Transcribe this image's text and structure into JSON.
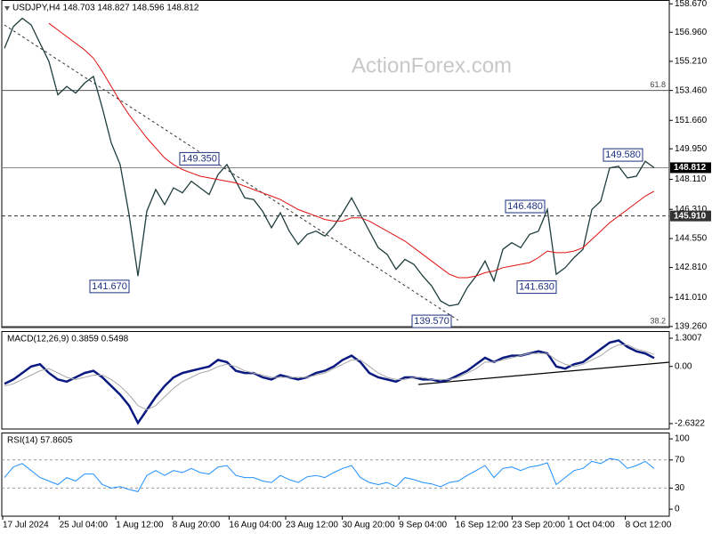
{
  "chart_data": [
    {
      "type": "line",
      "title": "USDJPY,H4  148.703 148.827 148.596 148.812",
      "watermark": "ActionForex.com",
      "ylim": [
        139.2,
        158.9
      ],
      "yticks": [
        {
          "value": 158.67,
          "label": "158.670"
        },
        {
          "value": 156.96,
          "label": "156.960"
        },
        {
          "value": 155.21,
          "label": "155.210"
        },
        {
          "value": 153.46,
          "label": "153.460"
        },
        {
          "value": 151.66,
          "label": "151.660"
        },
        {
          "value": 149.95,
          "label": "149.950"
        },
        {
          "value": 148.11,
          "label": "148.110"
        },
        {
          "value": 146.31,
          "label": "146.310"
        },
        {
          "value": 144.55,
          "label": "144.550"
        },
        {
          "value": 142.81,
          "label": "142.810"
        },
        {
          "value": 141.01,
          "label": "141.010"
        },
        {
          "value": 139.26,
          "label": "139.260"
        }
      ],
      "series": [
        {
          "name": "USDJPY",
          "color": "#1f3d3d",
          "values": [
            156.0,
            157.3,
            157.8,
            157.4,
            156.3,
            155.2,
            153.2,
            153.7,
            153.3,
            153.9,
            154.3,
            152.4,
            150.3,
            149.0,
            146.0,
            142.3,
            146.2,
            147.5,
            146.6,
            147.6,
            147.3,
            148.0,
            147.6,
            147.2,
            148.4,
            149.0,
            148.0,
            147.0,
            146.9,
            146.2,
            145.2,
            146.1,
            145.0,
            144.2,
            144.8,
            145.0,
            144.7,
            145.3,
            146.1,
            147.0,
            146.0,
            145.0,
            144.0,
            143.6,
            142.7,
            143.3,
            143.0,
            142.3,
            141.7,
            140.8,
            140.5,
            140.6,
            141.6,
            142.3,
            143.2,
            142.0,
            143.9,
            144.3,
            144.0,
            144.8,
            145.0,
            146.3,
            142.4,
            142.8,
            143.4,
            143.9,
            146.3,
            146.8,
            148.8,
            148.9,
            148.2,
            148.3,
            149.2,
            148.812
          ]
        },
        {
          "name": "MA",
          "color": "#e01010",
          "values": [
            null,
            null,
            null,
            null,
            null,
            157.5,
            157.1,
            156.7,
            156.3,
            155.9,
            155.4,
            154.6,
            153.7,
            152.8,
            152.0,
            151.3,
            150.6,
            150.0,
            149.4,
            149.0,
            148.7,
            148.5,
            148.3,
            148.2,
            148.1,
            148.0,
            147.9,
            147.7,
            147.5,
            147.3,
            147.1,
            146.9,
            146.6,
            146.3,
            146.1,
            145.9,
            145.7,
            145.6,
            145.6,
            145.8,
            145.8,
            145.6,
            145.3,
            145.0,
            144.7,
            144.4,
            144.0,
            143.6,
            143.2,
            142.8,
            142.4,
            142.2,
            142.2,
            142.3,
            142.5,
            142.6,
            142.8,
            142.9,
            143.0,
            143.1,
            143.4,
            143.8,
            143.7,
            143.7,
            143.8,
            144.0,
            144.5,
            145.0,
            145.5,
            145.9,
            146.3,
            146.7,
            147.1,
            147.4
          ]
        }
      ],
      "fib_levels": [
        {
          "ratio": 61.8,
          "price": 153.46
        },
        {
          "ratio": 38.2,
          "price": 139.26
        }
      ],
      "levels": [
        148.812,
        {
          "value": 145.91,
          "label": "145.910"
        }
      ],
      "annotations": [
        {
          "value": 149.35,
          "label": "149.350"
        },
        {
          "value": 141.67,
          "label": "141.670"
        },
        {
          "value": 139.57,
          "label": "139.570"
        },
        {
          "value": 146.48,
          "label": "146.480"
        },
        {
          "value": 141.63,
          "label": "141.630"
        },
        {
          "value": 149.58,
          "label": "149.580"
        }
      ]
    },
    {
      "type": "line",
      "title": "MACD(12,26,9) 0.3859 0.5498",
      "ylim": [
        -2.88,
        1.63
      ],
      "yticks": [
        1.3007,
        {
          "value": 0,
          "label": "0.00"
        },
        -2.6322
      ],
      "series": [
        {
          "name": "MACD",
          "color": "#0a1a80",
          "values": [
            -0.8,
            -0.6,
            -0.3,
            0.0,
            0.1,
            -0.3,
            -0.6,
            -0.7,
            -0.5,
            -0.3,
            -0.2,
            -0.5,
            -0.9,
            -1.3,
            -1.8,
            -2.6,
            -2.0,
            -1.4,
            -0.9,
            -0.5,
            -0.3,
            -0.2,
            -0.1,
            0.0,
            0.3,
            0.2,
            -0.2,
            -0.3,
            -0.3,
            -0.5,
            -0.6,
            -0.4,
            -0.5,
            -0.6,
            -0.5,
            -0.3,
            -0.2,
            0.0,
            0.3,
            0.5,
            0.2,
            -0.3,
            -0.5,
            -0.6,
            -0.7,
            -0.5,
            -0.5,
            -0.6,
            -0.6,
            -0.7,
            -0.6,
            -0.4,
            -0.2,
            0.1,
            0.4,
            0.2,
            0.4,
            0.5,
            0.5,
            0.6,
            0.7,
            0.6,
            0.0,
            -0.1,
            0.1,
            0.2,
            0.5,
            0.8,
            1.1,
            1.2,
            0.9,
            0.7,
            0.6,
            0.3859
          ]
        },
        {
          "name": "Signal",
          "color": "#a8a8a8",
          "values": [
            -0.9,
            -0.8,
            -0.6,
            -0.4,
            -0.2,
            -0.1,
            -0.3,
            -0.5,
            -0.6,
            -0.5,
            -0.4,
            -0.4,
            -0.6,
            -0.9,
            -1.3,
            -1.8,
            -2.0,
            -1.8,
            -1.4,
            -1.0,
            -0.7,
            -0.5,
            -0.3,
            -0.2,
            0.0,
            0.1,
            0.0,
            -0.2,
            -0.3,
            -0.4,
            -0.5,
            -0.5,
            -0.5,
            -0.5,
            -0.5,
            -0.4,
            -0.3,
            -0.1,
            0.1,
            0.3,
            0.3,
            0.0,
            -0.3,
            -0.5,
            -0.6,
            -0.6,
            -0.5,
            -0.5,
            -0.6,
            -0.6,
            -0.6,
            -0.5,
            -0.3,
            -0.1,
            0.2,
            0.2,
            0.3,
            0.4,
            0.5,
            0.6,
            0.6,
            0.6,
            0.3,
            0.1,
            0.0,
            0.1,
            0.3,
            0.5,
            0.8,
            1.0,
            1.0,
            0.8,
            0.7,
            0.5498
          ]
        }
      ]
    },
    {
      "type": "line",
      "title": "RSI(14) 57.8605",
      "ylim": [
        -10,
        109
      ],
      "yticks": [
        100,
        70,
        30,
        0
      ],
      "dashed_levels": [
        70,
        30
      ],
      "series": [
        {
          "name": "RSI",
          "color": "#1e90ff",
          "values": [
            45,
            60,
            65,
            55,
            45,
            40,
            35,
            45,
            40,
            50,
            50,
            35,
            30,
            32,
            28,
            25,
            48,
            55,
            48,
            55,
            52,
            58,
            52,
            50,
            60,
            62,
            48,
            45,
            45,
            40,
            38,
            48,
            42,
            38,
            46,
            48,
            45,
            52,
            58,
            62,
            45,
            38,
            35,
            38,
            32,
            45,
            42,
            38,
            36,
            32,
            38,
            40,
            48,
            55,
            62,
            45,
            58,
            60,
            55,
            60,
            62,
            66,
            35,
            45,
            55,
            58,
            68,
            65,
            72,
            70,
            58,
            62,
            68,
            57.8605
          ]
        }
      ],
      "x_labels": [
        "17 Jul 2024",
        "25 Jul 04:00",
        "1 Aug 12:00",
        "8 Aug 20:00",
        "16 Aug 04:00",
        "23 Aug 12:00",
        "30 Aug 20:00",
        "9 Sep 04:00",
        "16 Sep 12:00",
        "23 Sep 20:00",
        "1 Oct 04:00",
        "8 Oct 12:00"
      ]
    }
  ]
}
